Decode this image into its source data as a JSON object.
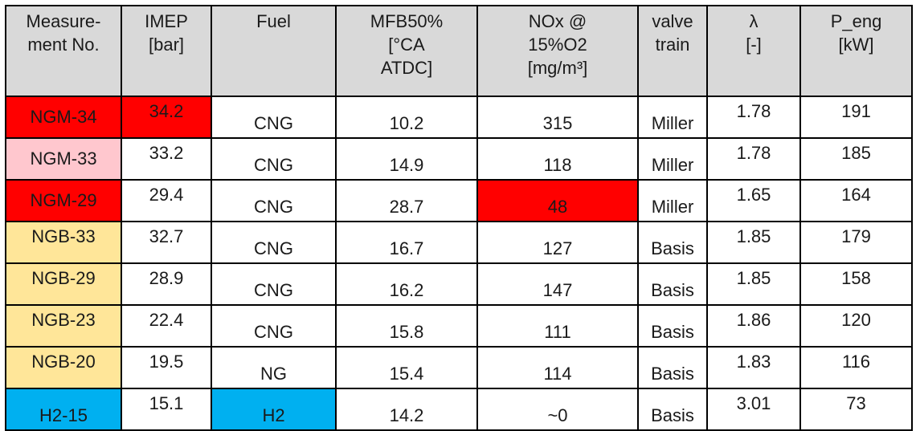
{
  "headers": [
    [
      "Measure-",
      "ment No."
    ],
    [
      "IMEP",
      "[bar]"
    ],
    [
      "Fuel"
    ],
    [
      "MFB50%",
      "[°CA",
      "ATDC]"
    ],
    [
      "NOx @",
      "15%O2",
      "[mg/m³]"
    ],
    [
      "valve",
      "train"
    ],
    [
      "λ",
      "[-]"
    ],
    [
      "P_eng",
      "[kW]"
    ]
  ],
  "rows": [
    {
      "id": "NGM-34",
      "imep": "34.2",
      "fuel": "CNG",
      "mfb50": "10.2",
      "nox": "315",
      "valve": "Miller",
      "lambda": "1.78",
      "p_eng": "191"
    },
    {
      "id": "NGM-33",
      "imep": "33.2",
      "fuel": "CNG",
      "mfb50": "14.9",
      "nox": "118",
      "valve": "Miller",
      "lambda": "1.78",
      "p_eng": "185"
    },
    {
      "id": "NGM-29",
      "imep": "29.4",
      "fuel": "CNG",
      "mfb50": "28.7",
      "nox": "48",
      "valve": "Miller",
      "lambda": "1.65",
      "p_eng": "164"
    },
    {
      "id": "NGB-33",
      "imep": "32.7",
      "fuel": "CNG",
      "mfb50": "16.7",
      "nox": "127",
      "valve": "Basis",
      "lambda": "1.85",
      "p_eng": "179"
    },
    {
      "id": "NGB-29",
      "imep": "28.9",
      "fuel": "CNG",
      "mfb50": "16.2",
      "nox": "147",
      "valve": "Basis",
      "lambda": "1.85",
      "p_eng": "158"
    },
    {
      "id": "NGB-23",
      "imep": "22.4",
      "fuel": "CNG",
      "mfb50": "15.8",
      "nox": "111",
      "valve": "Basis",
      "lambda": "1.86",
      "p_eng": "120"
    },
    {
      "id": "NGB-20",
      "imep": "19.5",
      "fuel": "NG",
      "mfb50": "15.4",
      "nox": "114",
      "valve": "Basis",
      "lambda": "1.83",
      "p_eng": "116"
    },
    {
      "id": "H2-15",
      "imep": "15.1",
      "fuel": "H2",
      "mfb50": "14.2",
      "nox": "~0",
      "valve": "Basis",
      "lambda": "3.01",
      "p_eng": "73"
    }
  ],
  "highlight_colors": {
    "red": "#ff0000",
    "pink": "#ffc7ce",
    "orange": "#ffe699",
    "blue": "#00b0f0",
    "header_gray": "#d9d9d9"
  }
}
